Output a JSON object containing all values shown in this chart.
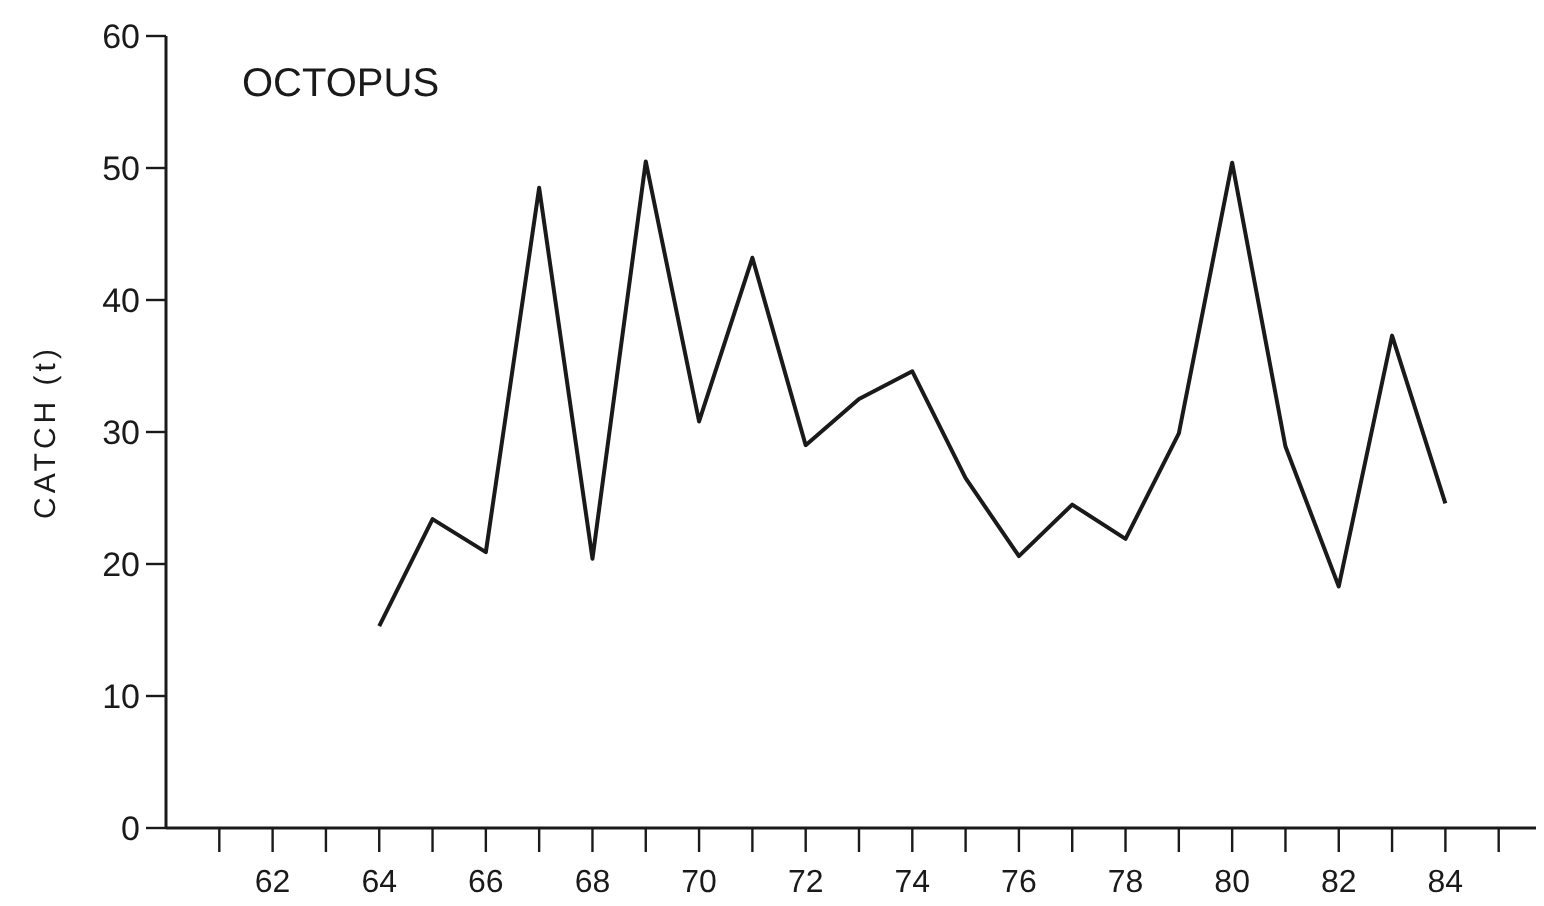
{
  "chart_data": {
    "type": "line",
    "title": "OCTOPUS",
    "ylabel": "CATCH (t)",
    "x": [
      64,
      65,
      66,
      67,
      68,
      69,
      70,
      71,
      72,
      73,
      74,
      75,
      76,
      77,
      78,
      79,
      80,
      81,
      82,
      83,
      84
    ],
    "series": [
      {
        "color": "#1a1a1a",
        "values": [
          15.3,
          23.4,
          20.9,
          48.5,
          20.4,
          50.5,
          30.8,
          43.2,
          29.0,
          32.5,
          34.6,
          26.5,
          20.6,
          24.5,
          21.9,
          29.9,
          50.4,
          28.9,
          18.3,
          37.3,
          24.6
        ]
      }
    ],
    "xlim": [
      60,
      85.7
    ],
    "ylim": [
      0,
      60
    ],
    "xticks": [
      {
        "value": 61,
        "label": null
      },
      62,
      {
        "value": 63,
        "label": null
      },
      64,
      {
        "value": 65,
        "label": null
      },
      66,
      {
        "value": 67,
        "label": null
      },
      68,
      {
        "value": 69,
        "label": null
      },
      70,
      {
        "value": 71,
        "label": null
      },
      72,
      {
        "value": 73,
        "label": null
      },
      74,
      {
        "value": 75,
        "label": null
      },
      76,
      {
        "value": 77,
        "label": null
      },
      78,
      {
        "value": 79,
        "label": null
      },
      80,
      {
        "value": 81,
        "label": null
      },
      82,
      {
        "value": 83,
        "label": null
      },
      84,
      {
        "value": 85,
        "label": null
      }
    ],
    "yticks": [
      0,
      10,
      20,
      30,
      40,
      50,
      60
    ],
    "grid": false,
    "marker": "none",
    "line_style": "solid"
  }
}
